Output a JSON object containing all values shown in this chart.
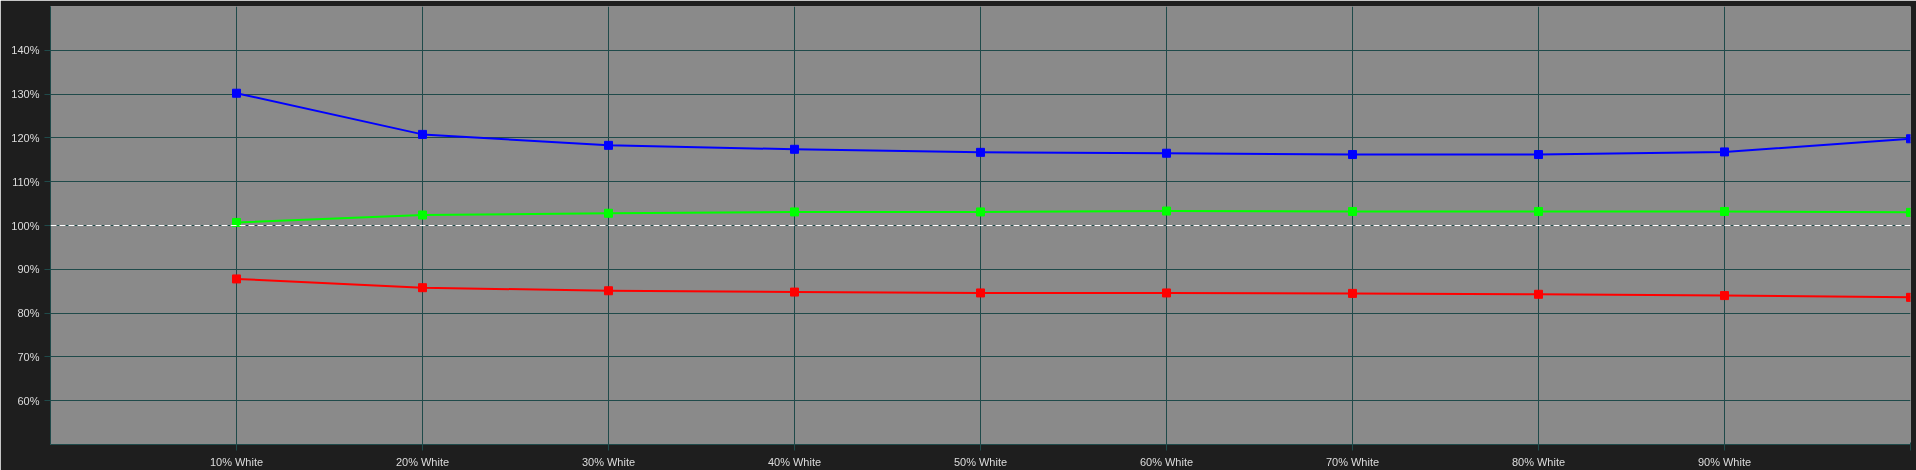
{
  "chart_data": {
    "type": "line",
    "x": [
      10,
      20,
      30,
      40,
      50,
      60,
      70,
      80,
      90,
      100
    ],
    "series": [
      {
        "color": "#0000ff",
        "values": [
          130.2,
          120.8,
          118.3,
          117.4,
          116.7,
          116.5,
          116.2,
          116.2,
          116.8,
          119.8
        ]
      },
      {
        "color": "#00ff00",
        "values": [
          100.7,
          102.4,
          102.8,
          103.1,
          103.1,
          103.3,
          103.2,
          103.2,
          103.2,
          103.0
        ]
      },
      {
        "color": "#ff0000",
        "values": [
          87.8,
          85.8,
          85.1,
          84.8,
          84.6,
          84.6,
          84.5,
          84.3,
          84.0,
          83.6
        ]
      }
    ],
    "xlim": [
      0,
      100
    ],
    "ylim": [
      50,
      150
    ],
    "xticks": [
      {
        "value": 10,
        "label": "10% White"
      },
      {
        "value": 20,
        "label": "20% White"
      },
      {
        "value": 30,
        "label": "30% White"
      },
      {
        "value": 40,
        "label": "40% White"
      },
      {
        "value": 50,
        "label": "50% White"
      },
      {
        "value": 60,
        "label": "60% White"
      },
      {
        "value": 70,
        "label": "70% White"
      },
      {
        "value": 80,
        "label": "80% White"
      },
      {
        "value": 90,
        "label": "90% White"
      },
      {
        "value": 100,
        "label": null
      }
    ],
    "yticks": [
      {
        "value": 60,
        "label": "60%"
      },
      {
        "value": 70,
        "label": "70%"
      },
      {
        "value": 80,
        "label": "80%"
      },
      {
        "value": 90,
        "label": "90%"
      },
      {
        "value": 100,
        "label": "100%"
      },
      {
        "value": 110,
        "label": "110%"
      },
      {
        "value": 120,
        "label": "120%"
      },
      {
        "value": 130,
        "label": "130%"
      },
      {
        "value": 140,
        "label": "140%"
      }
    ],
    "ref_lines": [
      {
        "axis": "y",
        "value": 100,
        "color": "#ffffff",
        "line_style": "dashed"
      }
    ],
    "grid": true,
    "marker": "square",
    "line_style": "solid"
  }
}
